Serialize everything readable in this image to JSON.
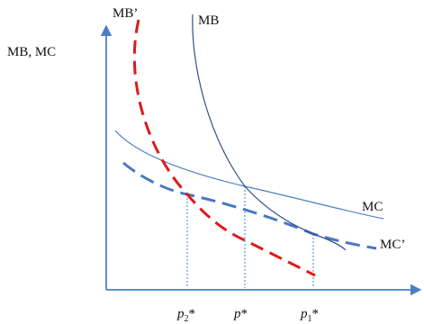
{
  "axes": {
    "y_label": "MB, MC"
  },
  "curves": {
    "mb": "MB",
    "mb_prime": "MB’",
    "mc": "MC",
    "mc_prime": "MC’"
  },
  "ticks": {
    "p2": {
      "base": "p",
      "sub": "2",
      "sup": "*"
    },
    "p": {
      "base": "p",
      "sup": "*"
    },
    "p1": {
      "base": "p",
      "sub": "1",
      "sup": "*"
    }
  },
  "colors": {
    "axis": "#4a7fc6",
    "mb": "#2f4f8a",
    "mc": "#4a7fc6",
    "mb_prime": "#e01919",
    "mc_prime": "#4a78c2",
    "guide": "#4a7fc6",
    "text": "#111111"
  }
}
